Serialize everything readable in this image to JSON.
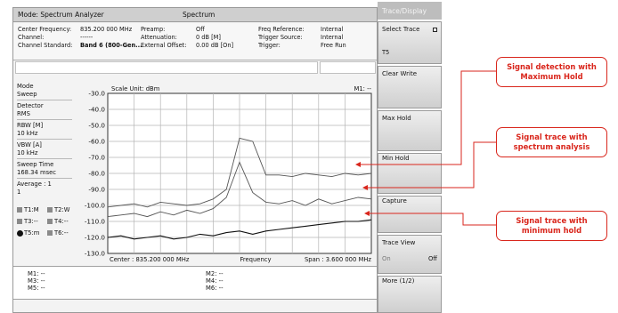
{
  "window": {
    "mode": "Mode: Spectrum Analyzer",
    "screen": "Spectrum"
  },
  "info": {
    "rows": [
      [
        "Center Frequency:",
        "835.200 000 MHz",
        "Preamp:",
        "Off",
        "Freq Reference:",
        "Internal"
      ],
      [
        "Channel:",
        "------",
        "Attenuation:",
        "0 dB  [M]",
        "Trigger Source:",
        "Internal"
      ],
      [
        "Channel Standard:",
        "Band 6 (800-Gen...",
        "External Offset:",
        "0.00 dB  [On]",
        "Trigger:",
        "Free Run"
      ]
    ]
  },
  "params": {
    "mode_label": "Mode",
    "mode_value": "Sweep",
    "detector_label": "Detector",
    "detector_value": "RMS",
    "rbw_label": "RBW [M]",
    "rbw_value": "10 kHz",
    "vbw_label": "VBW [A]",
    "vbw_value": "10 kHz",
    "sweep_label": "Sweep Time",
    "sweep_value": "168.34 msec",
    "average_label": "Average : 1",
    "average_value": "1",
    "traces": [
      "T1:M",
      "T2:W",
      "T3:--",
      "T4:--",
      "T5:m",
      "T6:--"
    ]
  },
  "chart_data": {
    "type": "line",
    "scale_unit": "Scale Unit: dBm",
    "marker_readout": "M1: --",
    "y_ticks": [
      "-30.0",
      "-40.0",
      "-50.0",
      "-60.0",
      "-70.0",
      "-80.0",
      "-90.0",
      "-100.0",
      "-110.0",
      "-120.0",
      "-130.0"
    ],
    "ylim": [
      -130,
      -30
    ],
    "x_divisions": 10,
    "grid": true,
    "center_label": "Center : 835.200 000 MHz",
    "xlabel": "Frequency",
    "span_label": "Span : 3.600 000 MHz",
    "series": [
      {
        "x": [
          0,
          0.5,
          1,
          1.5,
          2,
          2.5,
          3,
          3.5,
          4,
          4.5,
          5,
          5.5,
          6,
          6.5,
          7,
          7.5,
          8,
          8.5,
          9,
          9.5,
          10
        ],
        "values": [
          -101,
          -100,
          -99,
          -101,
          -98,
          -99,
          -100,
          -99,
          -96,
          -90,
          -58,
          -60,
          -81,
          -81,
          -82,
          -80,
          -81,
          -82,
          -80,
          -81,
          -80
        ]
      },
      {
        "x": [
          0,
          0.5,
          1,
          1.5,
          2,
          2.5,
          3,
          3.5,
          4,
          4.5,
          5,
          5.5,
          6,
          6.5,
          7,
          7.5,
          8,
          8.5,
          9,
          9.5,
          10
        ],
        "values": [
          -107,
          -106,
          -105,
          -107,
          -104,
          -106,
          -103,
          -105,
          -102,
          -95,
          -73,
          -92,
          -98,
          -99,
          -97,
          -100,
          -96,
          -99,
          -97,
          -95,
          -96
        ]
      },
      {
        "x": [
          0,
          0.5,
          1,
          1.5,
          2,
          2.5,
          3,
          3.5,
          4,
          4.5,
          5,
          5.5,
          6,
          6.5,
          7,
          7.5,
          8,
          8.5,
          9,
          9.5,
          10
        ],
        "values": [
          -120,
          -119,
          -121,
          -120,
          -119,
          -121,
          -120,
          -118,
          -119,
          -117,
          -116,
          -118,
          -116,
          -115,
          -114,
          -113,
          -112,
          -111,
          -110,
          -110,
          -109
        ]
      }
    ]
  },
  "markers": {
    "m1": "M1: --",
    "m2": "M2: --",
    "m3": "M3: --",
    "m4": "M4: --",
    "m5": "M5: --",
    "m6": "M6: --"
  },
  "softkeys": {
    "title": "Trace/Display",
    "select_trace": "Select Trace",
    "select_trace_value": "T5",
    "clear_write": "Clear Write",
    "max_hold": "Max Hold",
    "min_hold": "Min Hold",
    "capture": "Capture",
    "trace_view": "Trace View",
    "trace_view_on": "On",
    "trace_view_off": "Off",
    "more": "More (1/2)"
  },
  "callouts": {
    "max_hold": "Signal detection with Maximum Hold",
    "spectrum": "Signal trace with spectrum analysis",
    "min_hold": "Signal trace with minimum hold"
  },
  "colors": {
    "callout": "#d9261c",
    "trace": "#555555",
    "trace_min": "#111111"
  }
}
